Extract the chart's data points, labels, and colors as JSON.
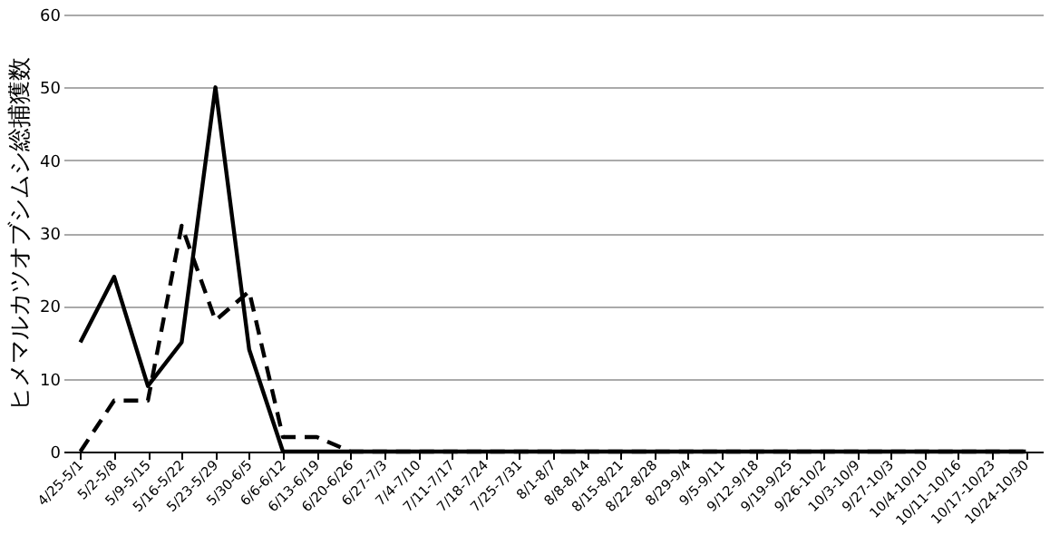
{
  "chart_data": {
    "type": "line",
    "ylabel": "ヒメマルカツオブシムシ総捕獲数",
    "categories": [
      "4/25-5/1",
      "5/2-5/8",
      "5/9-5/15",
      "5/16-5/22",
      "5/23-5/29",
      "5/30-6/5",
      "6/6-6/12",
      "6/13-6/19",
      "6/20-6/26",
      "6/27-7/3",
      "7/4-7/10",
      "7/11-7/17",
      "7/18-7/24",
      "7/25-7/31",
      "8/1-8/7",
      "8/8-8/14",
      "8/15-8/21",
      "8/22-8/28",
      "8/29-9/4",
      "9/5-9/11",
      "9/12-9/18",
      "9/19-9/25",
      "9/26-10/2",
      "10/3-10/9",
      "9/27-10/3",
      "10/4-10/10",
      "10/11–10/16",
      "10/17-10/23",
      "10/24-10/30"
    ],
    "series": [
      {
        "color": "#000000",
        "line_style": "solid",
        "values": [
          15,
          24,
          9,
          15,
          50,
          14,
          0,
          0,
          0,
          0,
          0,
          0,
          0,
          0,
          0,
          0,
          0,
          0,
          0,
          0,
          0,
          0,
          0,
          0,
          0,
          0,
          0,
          0,
          0
        ]
      },
      {
        "color": "#000000",
        "line_style": "dashed",
        "values": [
          0,
          7,
          7,
          31,
          18,
          22,
          2,
          2,
          0,
          0,
          0,
          0,
          0,
          0,
          0,
          0,
          0,
          0,
          0,
          0,
          0,
          0,
          0,
          0,
          0,
          0,
          0,
          0,
          0
        ]
      }
    ],
    "ylim": [
      0,
      60
    ],
    "yticks": [
      0,
      10,
      20,
      30,
      40,
      50,
      60
    ],
    "grid": "y",
    "marker": "none"
  }
}
